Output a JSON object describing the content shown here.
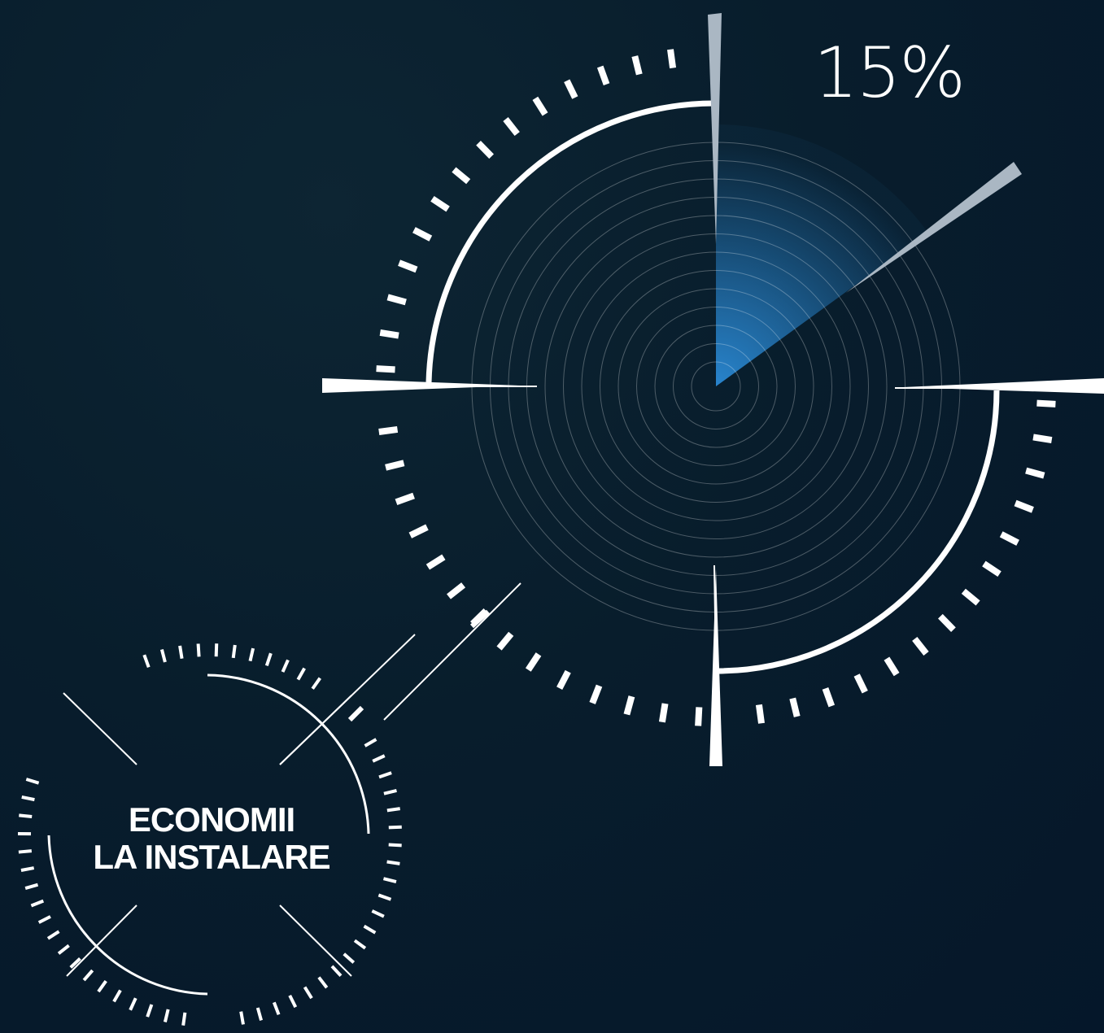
{
  "percentage_text": "15%",
  "percentage_value": 15,
  "label": {
    "line1": "ECONOMII",
    "line2": "LA INSTALARE"
  },
  "colors": {
    "background": "#081d2c",
    "foreground": "#ffffff",
    "accent": "#2a8ad6"
  }
}
